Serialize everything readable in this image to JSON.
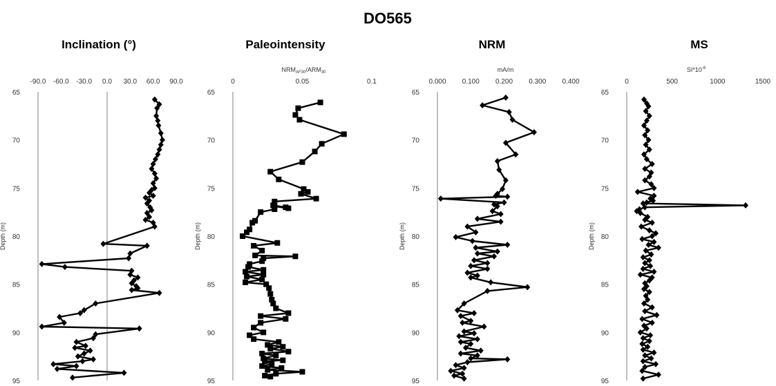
{
  "figure_title": "DO565",
  "chart_data": [
    {
      "type": "line",
      "title": "Inclination (°)",
      "xlabel": "",
      "ylabel": "Depth (m)",
      "xlim": [
        -90,
        90
      ],
      "xticks": [
        "-90.0",
        "-60.0",
        "-30.0",
        "0.0",
        "30.0",
        "60.0",
        "90.0"
      ],
      "ylim": [
        65,
        95
      ],
      "yticks": [
        "65",
        "70",
        "75",
        "80",
        "85",
        "90",
        "95"
      ],
      "marker": "diamond",
      "reference_line_x": 0,
      "x": [
        62,
        68,
        65,
        64,
        66,
        67,
        70,
        72,
        70,
        68,
        66,
        63,
        60,
        58,
        62,
        64,
        60,
        62,
        58,
        55,
        60,
        50,
        55,
        52,
        56,
        58,
        52,
        55,
        50,
        60,
        62,
        -5,
        52,
        30,
        28,
        -85,
        -55,
        32,
        30,
        40,
        35,
        32,
        38,
        40,
        32,
        68,
        -15,
        -30,
        -35,
        -62,
        -56,
        -85,
        42,
        -15,
        -18,
        -40,
        -28,
        -42,
        -22,
        -30,
        -38,
        -18,
        -32,
        -70,
        -40,
        -65,
        22,
        -45
      ],
      "y": [
        65.8,
        66.3,
        66.7,
        67.5,
        68.0,
        68.5,
        69.3,
        70.0,
        70.5,
        71.0,
        71.5,
        72.0,
        72.5,
        73.0,
        73.5,
        74.0,
        74.5,
        75.0,
        75.2,
        75.5,
        75.8,
        76.0,
        76.3,
        76.6,
        77.0,
        77.3,
        77.6,
        78.0,
        78.3,
        78.6,
        79.0,
        80.8,
        81.0,
        81.8,
        82.3,
        82.9,
        83.2,
        83.6,
        84.0,
        84.3,
        84.6,
        84.9,
        85.2,
        85.4,
        85.6,
        85.9,
        87.0,
        87.7,
        88.0,
        88.4,
        89.0,
        89.4,
        89.6,
        90.2,
        90.6,
        91.0,
        91.4,
        91.6,
        91.9,
        92.2,
        92.5,
        92.8,
        93.0,
        93.3,
        93.5,
        93.8,
        94.2,
        94.7
      ]
    },
    {
      "type": "line",
      "title": "Paleointensity",
      "xlabel": "NRM_AF30/ARM_30",
      "ylabel": "Depth (m)",
      "xlim": [
        0,
        0.1
      ],
      "xticks": [
        "0",
        "0.05",
        "0.1"
      ],
      "ylim": [
        65,
        95
      ],
      "yticks": [
        "65",
        "70",
        "75",
        "80",
        "85",
        "90",
        "95"
      ],
      "marker": "square",
      "x": [
        0.063,
        0.047,
        0.045,
        0.048,
        0.08,
        0.064,
        0.059,
        0.05,
        0.027,
        0.033,
        0.051,
        0.054,
        0.049,
        0.06,
        0.03,
        0.029,
        0.038,
        0.04,
        0.03,
        0.03,
        0.02,
        0.016,
        0.014,
        0.012,
        0.01,
        0.007,
        0.032,
        0.015,
        0.021,
        0.016,
        0.045,
        0.022,
        0.021,
        0.012,
        0.011,
        0.022,
        0.009,
        0.022,
        0.01,
        0.021,
        0.009,
        0.024,
        0.026,
        0.027,
        0.028,
        0.029,
        0.031,
        0.04,
        0.02,
        0.038,
        0.02,
        0.015,
        0.022,
        0.012,
        0.015,
        0.033,
        0.025,
        0.036,
        0.027,
        0.04,
        0.021,
        0.031,
        0.022,
        0.036,
        0.023,
        0.028,
        0.021,
        0.035,
        0.025,
        0.05,
        0.031,
        0.023,
        0.027
      ],
      "y": [
        66.1,
        66.7,
        67.4,
        67.9,
        69.4,
        70.4,
        71.2,
        72.3,
        73.3,
        74.1,
        75.1,
        75.4,
        75.6,
        76.1,
        76.4,
        76.8,
        77.0,
        77.1,
        76.9,
        77.2,
        77.5,
        78.4,
        78.6,
        79.3,
        79.6,
        80.0,
        80.7,
        81.0,
        81.5,
        82.0,
        82.1,
        82.3,
        82.6,
        82.9,
        83.2,
        83.5,
        83.7,
        84.0,
        84.2,
        84.5,
        84.8,
        85.0,
        85.4,
        86.0,
        86.6,
        87.0,
        87.5,
        88.0,
        88.3,
        88.6,
        89.0,
        89.5,
        90.0,
        90.3,
        90.7,
        91.0,
        91.3,
        91.5,
        91.7,
        92.0,
        92.2,
        92.4,
        92.7,
        92.9,
        93.0,
        93.3,
        93.5,
        93.7,
        93.9,
        94.1,
        94.3,
        94.5,
        94.6
      ]
    },
    {
      "type": "line",
      "title": "NRM",
      "xlabel": "mA/m",
      "ylabel": "Depth (m)",
      "xlim": [
        0,
        0.4
      ],
      "xticks": [
        "0.000",
        "0.100",
        "0.200",
        "0.300",
        "0.400"
      ],
      "ylim": [
        65,
        95
      ],
      "yticks": [
        "65",
        "70",
        "75",
        "80",
        "85",
        "90",
        "95"
      ],
      "marker": "diamond",
      "x": [
        0.205,
        0.135,
        0.215,
        0.225,
        0.29,
        0.205,
        0.235,
        0.18,
        0.185,
        0.205,
        0.195,
        0.18,
        0.175,
        0.21,
        0.01,
        0.2,
        0.17,
        0.18,
        0.165,
        0.19,
        0.12,
        0.19,
        0.09,
        0.115,
        0.055,
        0.105,
        0.21,
        0.115,
        0.18,
        0.12,
        0.17,
        0.11,
        0.15,
        0.1,
        0.15,
        0.09,
        0.12,
        0.1,
        0.16,
        0.27,
        0.15,
        0.08,
        0.06,
        0.11,
        0.07,
        0.1,
        0.075,
        0.14,
        0.08,
        0.11,
        0.065,
        0.12,
        0.07,
        0.1,
        0.085,
        0.13,
        0.07,
        0.12,
        0.1,
        0.21,
        0.09,
        0.055,
        0.08,
        0.04,
        0.075,
        0.05,
        0.08
      ],
      "y": [
        65.6,
        66.4,
        67.1,
        67.9,
        69.2,
        70.3,
        71.5,
        72.2,
        73.1,
        74.2,
        75.1,
        75.6,
        75.8,
        75.9,
        76.1,
        76.5,
        76.7,
        76.9,
        77.4,
        77.7,
        78.2,
        78.5,
        79.0,
        79.6,
        80.1,
        80.5,
        80.9,
        81.2,
        81.6,
        81.8,
        82.1,
        82.5,
        82.8,
        83.1,
        83.4,
        83.8,
        84.1,
        84.3,
        84.8,
        85.3,
        85.7,
        87.0,
        87.7,
        88.0,
        88.3,
        88.8,
        89.0,
        89.4,
        89.9,
        90.1,
        90.4,
        90.7,
        91.0,
        91.2,
        91.6,
        91.9,
        92.2,
        92.4,
        92.7,
        92.8,
        93.1,
        93.4,
        93.7,
        94.0,
        94.3,
        94.5,
        94.8
      ]
    },
    {
      "type": "line",
      "title": "MS",
      "xlabel": "SI*10^-6",
      "ylabel": "Depth (m)",
      "xlim": [
        0,
        1500
      ],
      "xticks": [
        "0",
        "500",
        "1000",
        "1500"
      ],
      "ylim": [
        65,
        95
      ],
      "yticks": [
        "65",
        "70",
        "75",
        "80",
        "85",
        "90",
        "95"
      ],
      "marker": "diamond",
      "x": [
        190,
        220,
        240,
        210,
        250,
        220,
        190,
        230,
        200,
        240,
        210,
        250,
        190,
        220,
        280,
        200,
        270,
        250,
        200,
        270,
        300,
        120,
        300,
        260,
        290,
        220,
        180,
        1310,
        200,
        140,
        110,
        150,
        230,
        200,
        280,
        160,
        250,
        320,
        280,
        170,
        300,
        240,
        350,
        210,
        270,
        180,
        250,
        200,
        260,
        180,
        300,
        150,
        280,
        250,
        200,
        220,
        190,
        250,
        210,
        230,
        190,
        280,
        200,
        330,
        170,
        280,
        190,
        220,
        150,
        260,
        180,
        250,
        170,
        230,
        180,
        300,
        200,
        270,
        180,
        320,
        200,
        170,
        350,
        180
      ],
      "y": [
        65.8,
        66.2,
        66.5,
        67.0,
        67.5,
        68.0,
        68.5,
        69.0,
        69.5,
        70.0,
        70.5,
        71.0,
        71.5,
        72.0,
        72.5,
        73.0,
        73.4,
        73.8,
        74.2,
        74.6,
        75.0,
        75.4,
        75.8,
        76.1,
        76.3,
        76.5,
        76.6,
        76.8,
        77.0,
        77.2,
        77.4,
        77.6,
        78.0,
        78.3,
        78.6,
        79.0,
        79.4,
        79.7,
        80.0,
        80.3,
        80.6,
        80.9,
        81.2,
        81.5,
        81.9,
        82.2,
        82.5,
        82.8,
        83.1,
        83.4,
        83.7,
        84.0,
        84.3,
        84.6,
        84.9,
        85.2,
        85.5,
        85.8,
        86.2,
        86.6,
        87.0,
        87.4,
        87.8,
        88.2,
        88.6,
        89.0,
        89.3,
        89.6,
        90.0,
        90.3,
        90.6,
        90.9,
        91.2,
        91.5,
        91.8,
        92.1,
        92.4,
        92.7,
        93.0,
        93.3,
        93.6,
        94.0,
        94.4,
        94.8
      ]
    }
  ]
}
